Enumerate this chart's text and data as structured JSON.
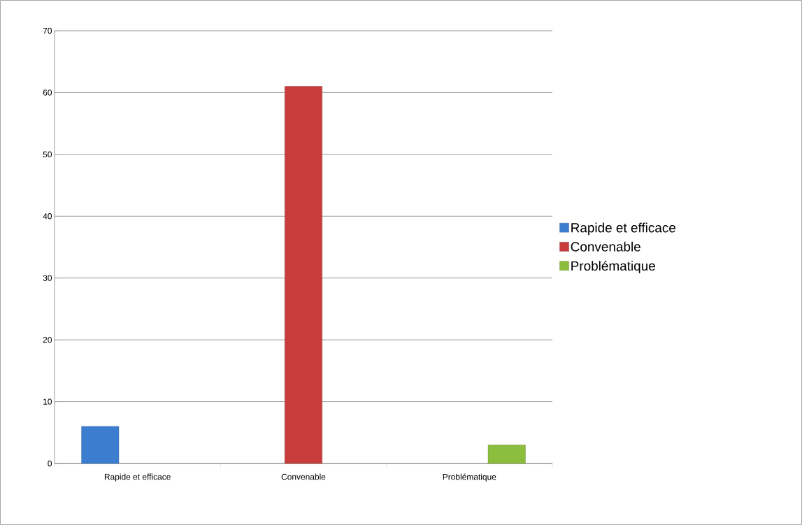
{
  "chart_data": {
    "type": "bar",
    "categories": [
      "Rapide et efficace",
      "Convenable",
      "Problématique"
    ],
    "series": [
      {
        "name": "Rapide et efficace",
        "color": "#3c7dd0",
        "values": [
          6,
          null,
          null
        ]
      },
      {
        "name": "Convenable",
        "color": "#c83c3c",
        "values": [
          null,
          61,
          null
        ]
      },
      {
        "name": "Problématique",
        "color": "#8cbd3c",
        "values": [
          null,
          null,
          3
        ]
      }
    ],
    "ylim": [
      0,
      70
    ],
    "yticks": [
      0,
      10,
      20,
      30,
      40,
      50,
      60,
      70
    ],
    "grid": "y",
    "legend": "right"
  }
}
